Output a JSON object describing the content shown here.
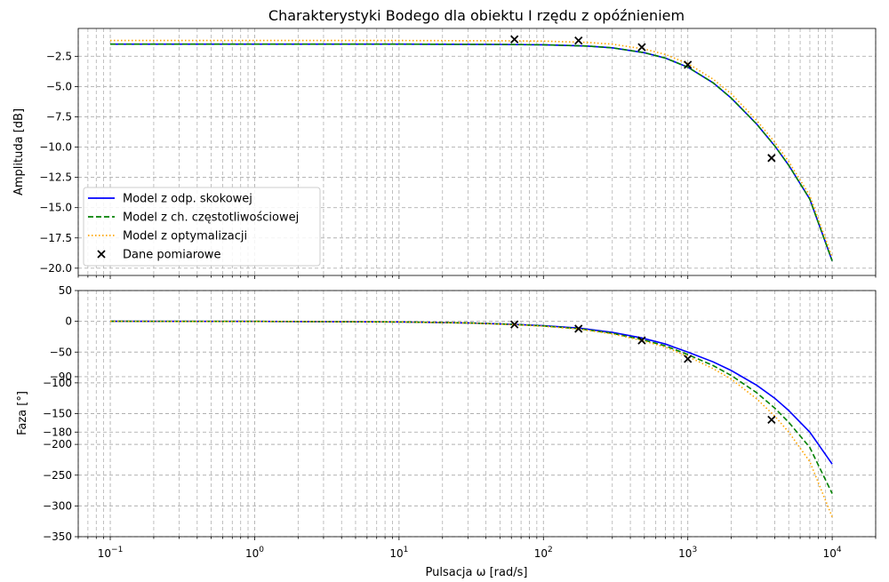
{
  "chart_data": {
    "type": "line",
    "title": "Charakterystyki Bodego dla obiektu I rzędu z opóźnieniem",
    "xlabel": "Pulsacja ω [rad/s]",
    "x_scale": "log",
    "xlim": [
      0.06,
      20000
    ],
    "x_ticks": [
      {
        "value": 0.1,
        "base": "10",
        "exp": "−1"
      },
      {
        "value": 1,
        "base": "10",
        "exp": "0"
      },
      {
        "value": 10,
        "base": "10",
        "exp": "1"
      },
      {
        "value": 100,
        "base": "10",
        "exp": "2"
      },
      {
        "value": 1000,
        "base": "10",
        "exp": "3"
      },
      {
        "value": 10000,
        "base": "10",
        "exp": "4"
      }
    ],
    "grid": true,
    "legend_position": "lower-left of top panel",
    "panels": [
      {
        "id": "amplitude",
        "ylabel": "Amplituda [dB]",
        "ylim": [
          -20.6,
          -0.2
        ],
        "yticks": [
          {
            "value": -2.5,
            "label": "−2.5"
          },
          {
            "value": -5.0,
            "label": "−5.0"
          },
          {
            "value": -7.5,
            "label": "−7.5"
          },
          {
            "value": -10.0,
            "label": "−10.0"
          },
          {
            "value": -12.5,
            "label": "−12.5"
          },
          {
            "value": -15.0,
            "label": "−15.0"
          },
          {
            "value": -17.5,
            "label": "−17.5"
          },
          {
            "value": -20.0,
            "label": "−20.0"
          }
        ],
        "series": [
          {
            "name": "Model z odp. skokowej",
            "color": "#0000ff",
            "dash": "solid",
            "x": [
              0.1,
              1,
              10,
              50,
              100,
              200,
              300,
              500,
              700,
              1000,
              1500,
              2000,
              3000,
              4000,
              5000,
              7000,
              10000
            ],
            "y": [
              -1.5,
              -1.5,
              -1.5,
              -1.52,
              -1.55,
              -1.65,
              -1.8,
              -2.2,
              -2.65,
              -3.4,
              -4.7,
              -5.95,
              -8.1,
              -9.9,
              -11.5,
              -14.3,
              -19.4
            ]
          },
          {
            "name": "Model z ch. częstotliwościowej",
            "color": "#008000",
            "dash": "dashed",
            "x": [
              0.1,
              1,
              10,
              50,
              100,
              200,
              300,
              500,
              700,
              1000,
              1500,
              2000,
              3000,
              4000,
              5000,
              7000,
              10000
            ],
            "y": [
              -1.5,
              -1.5,
              -1.5,
              -1.52,
              -1.55,
              -1.65,
              -1.8,
              -2.2,
              -2.65,
              -3.4,
              -4.7,
              -5.95,
              -8.1,
              -9.9,
              -11.5,
              -14.3,
              -19.4
            ]
          },
          {
            "name": "Model z optymalizacji",
            "color": "#ffa500",
            "dash": "dotted",
            "x": [
              0.1,
              1,
              10,
              50,
              100,
              200,
              300,
              500,
              700,
              1000,
              1500,
              2000,
              3000,
              4000,
              5000,
              7000,
              10000
            ],
            "y": [
              -1.2,
              -1.2,
              -1.2,
              -1.22,
              -1.25,
              -1.35,
              -1.5,
              -1.9,
              -2.35,
              -3.1,
              -4.4,
              -5.6,
              -7.8,
              -9.6,
              -11.2,
              -14.0,
              -19.1
            ]
          }
        ],
        "measurements": {
          "name": "Dane pomiarowe",
          "color": "#000000",
          "marker": "x",
          "x": [
            63,
            175,
            480,
            1000,
            3800
          ],
          "y": [
            -1.1,
            -1.2,
            -1.75,
            -3.2,
            -10.9
          ]
        }
      },
      {
        "id": "phase",
        "ylabel": "Faza [°]",
        "ylim": [
          -350,
          50
        ],
        "yticks": [
          {
            "value": 50,
            "label": "50"
          },
          {
            "value": 0,
            "label": "0"
          },
          {
            "value": -50,
            "label": "−50"
          },
          {
            "value": -90,
            "label": "−90"
          },
          {
            "value": -100,
            "label": "−100"
          },
          {
            "value": -150,
            "label": "−150"
          },
          {
            "value": -180,
            "label": "−180"
          },
          {
            "value": -200,
            "label": "−200"
          },
          {
            "value": -250,
            "label": "−250"
          },
          {
            "value": -300,
            "label": "−300"
          },
          {
            "value": -350,
            "label": "−350"
          }
        ],
        "series": [
          {
            "name": "Model z odp. skokowej",
            "color": "#0000ff",
            "dash": "solid",
            "x": [
              0.1,
              1,
              10,
              30,
              63,
              100,
              175,
              300,
              480,
              700,
              1000,
              1500,
              2000,
              3000,
              4000,
              5000,
              7000,
              10000
            ],
            "y": [
              0,
              -0.1,
              -1,
              -2.5,
              -5,
              -7,
              -11,
              -18,
              -27,
              -37,
              -50,
              -66,
              -80,
              -104,
              -125,
              -145,
              -180,
              -232
            ]
          },
          {
            "name": "Model z ch. częstotliwościowej",
            "color": "#008000",
            "dash": "dashed",
            "x": [
              0.1,
              1,
              10,
              30,
              63,
              100,
              175,
              300,
              480,
              700,
              1000,
              1500,
              2000,
              3000,
              4000,
              5000,
              7000,
              10000
            ],
            "y": [
              0,
              -0.1,
              -1,
              -2.5,
              -5.2,
              -7.5,
              -12,
              -19.5,
              -29.5,
              -40,
              -54,
              -72,
              -88,
              -116,
              -141,
              -164,
              -205,
              -280
            ]
          },
          {
            "name": "Model z optymalizacji",
            "color": "#ffa500",
            "dash": "dotted",
            "x": [
              0.1,
              1,
              10,
              30,
              63,
              100,
              175,
              300,
              480,
              700,
              1000,
              1500,
              2000,
              3000,
              4000,
              5000,
              7000,
              10000
            ],
            "y": [
              0,
              -0.1,
              -1,
              -2.7,
              -5.5,
              -8,
              -12.5,
              -20.5,
              -31,
              -42,
              -57,
              -77,
              -94,
              -126,
              -154,
              -180,
              -228,
              -318
            ]
          }
        ],
        "measurements": {
          "name": "Dane pomiarowe",
          "color": "#000000",
          "marker": "x",
          "x": [
            63,
            175,
            480,
            1000,
            3800
          ],
          "y": [
            -5,
            -12,
            -31,
            -61,
            -160
          ]
        }
      }
    ]
  }
}
